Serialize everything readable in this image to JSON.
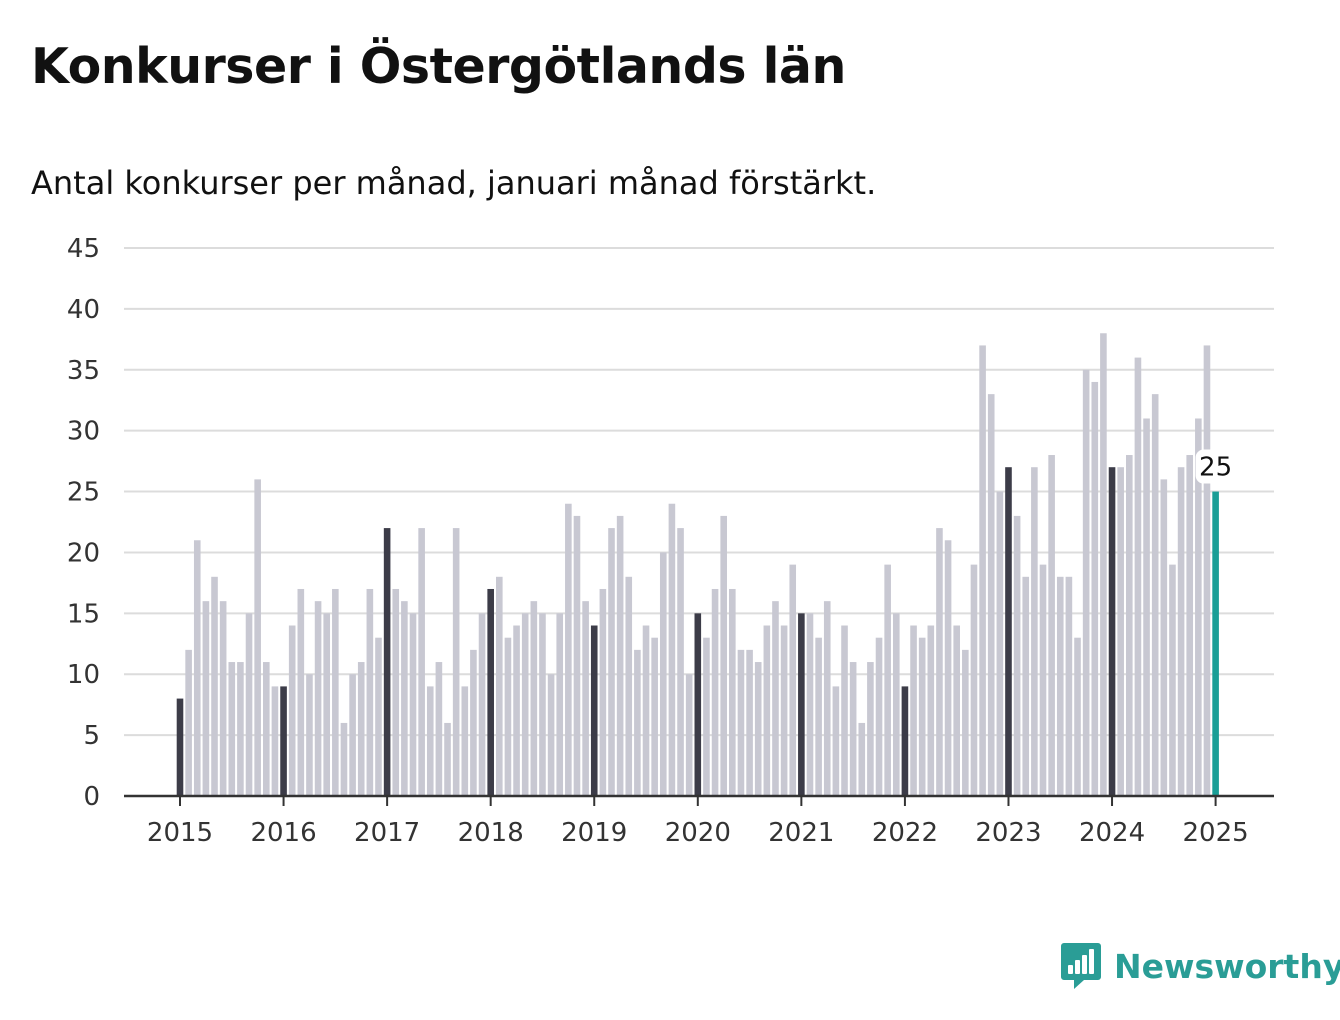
{
  "title": "Konkurser i Östergötlands län",
  "subtitle": "Antal konkurser per månad, januari månad förstärkt.",
  "brand": {
    "name": "Newsworthy",
    "icon": "newsworthy-logo-icon",
    "color": "#2a9d96"
  },
  "colors": {
    "bar": "#c8c8d2",
    "january_bar": "#3c3c48",
    "latest_bar": "#1a9e96",
    "grid": "#dcdcdc",
    "axis": "#333333",
    "text": "#333333"
  },
  "chart_data": {
    "type": "bar",
    "title": "Konkurser i Östergötlands län",
    "subtitle": "Antal konkurser per månad, januari månad förstärkt.",
    "xlabel": "",
    "ylabel": "",
    "ylim": [
      0,
      45
    ],
    "yticks": [
      0,
      5,
      10,
      15,
      20,
      25,
      30,
      35,
      40,
      45
    ],
    "xticks": [
      "2015",
      "2016",
      "2017",
      "2018",
      "2019",
      "2020",
      "2021",
      "2022",
      "2023",
      "2024",
      "2025"
    ],
    "grid": true,
    "start_month": "2015-01",
    "highlight": "january",
    "latest_label": "25",
    "values": [
      8,
      12,
      21,
      16,
      18,
      16,
      11,
      11,
      15,
      26,
      11,
      9,
      9,
      14,
      17,
      10,
      16,
      15,
      17,
      6,
      10,
      11,
      17,
      13,
      22,
      17,
      16,
      15,
      22,
      9,
      11,
      6,
      22,
      9,
      12,
      15,
      17,
      18,
      13,
      14,
      15,
      16,
      15,
      10,
      15,
      24,
      23,
      16,
      14,
      17,
      22,
      23,
      18,
      12,
      14,
      13,
      20,
      24,
      22,
      10,
      15,
      13,
      17,
      23,
      17,
      12,
      12,
      11,
      14,
      16,
      14,
      19,
      15,
      15,
      13,
      16,
      9,
      14,
      11,
      6,
      11,
      13,
      19,
      15,
      9,
      14,
      13,
      14,
      22,
      21,
      14,
      12,
      19,
      37,
      33,
      25,
      27,
      23,
      18,
      27,
      19,
      28,
      18,
      18,
      13,
      35,
      34,
      38,
      27,
      27,
      28,
      36,
      31,
      33,
      26,
      19,
      27,
      28,
      31,
      37,
      25
    ]
  }
}
